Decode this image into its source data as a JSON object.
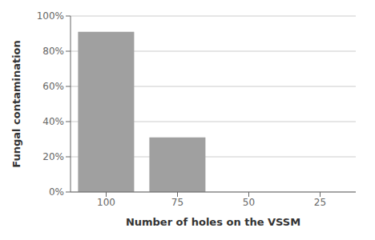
{
  "chart_data": {
    "type": "bar",
    "categories": [
      "100",
      "75",
      "50",
      "25"
    ],
    "values": [
      0.91,
      0.31,
      0,
      0
    ],
    "color": "#a0a0a0",
    "xlabel": "Number of holes on the VSSM",
    "ylabel": "Fungal contamination",
    "ylim": [
      0,
      1.0
    ],
    "yticks": [
      {
        "value": 0.0,
        "label": "0%"
      },
      {
        "value": 0.2,
        "label": "20%"
      },
      {
        "value": 0.4,
        "label": "40%"
      },
      {
        "value": 0.6,
        "label": "60%"
      },
      {
        "value": 0.8,
        "label": "80%"
      },
      {
        "value": 1.0,
        "label": "100%"
      }
    ],
    "grid": true
  }
}
